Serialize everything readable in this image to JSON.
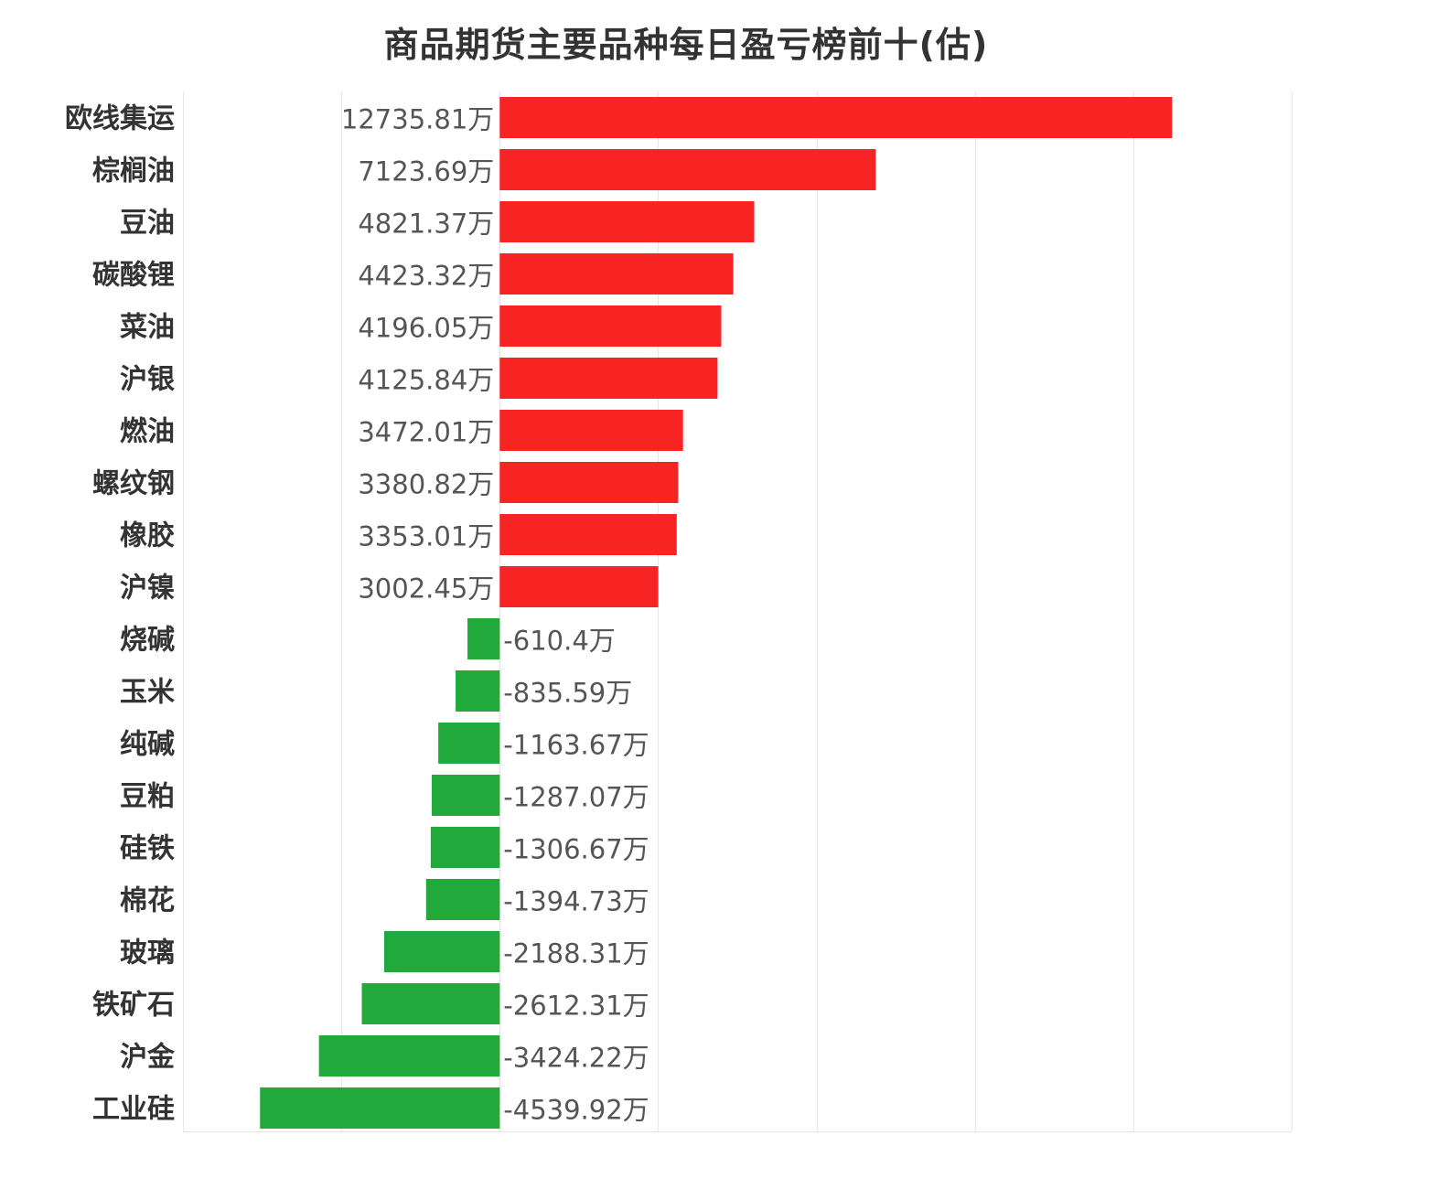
{
  "chart_data": {
    "type": "bar",
    "orientation": "horizontal",
    "title": "商品期货主要品种每日盈亏榜前十(估)",
    "unit": "万",
    "categories": [
      "欧线集运",
      "棕榈油",
      "豆油",
      "碳酸锂",
      "菜油",
      "沪银",
      "燃油",
      "螺纹钢",
      "橡胶",
      "沪镍",
      "烧碱",
      "玉米",
      "纯碱",
      "豆粕",
      "硅铁",
      "棉花",
      "玻璃",
      "铁矿石",
      "沪金",
      "工业硅"
    ],
    "values": [
      12735.81,
      7123.69,
      4821.37,
      4423.32,
      4196.05,
      4125.84,
      3472.01,
      3380.82,
      3353.01,
      3002.45,
      -610.4,
      -835.59,
      -1163.67,
      -1287.07,
      -1306.67,
      -1394.73,
      -2188.31,
      -2612.31,
      -3424.22,
      -4539.92
    ],
    "value_labels": [
      "12735.81万",
      "7123.69万",
      "4821.37万",
      "4423.32万",
      "4196.05万",
      "4125.84万",
      "3472.01万",
      "3380.82万",
      "3353.01万",
      "3002.45万",
      "-610.4万",
      "-835.59万",
      "-1163.67万",
      "-1287.07万",
      "-1306.67万",
      "-1394.73万",
      "-2188.31万",
      "-2612.31万",
      "-3424.22万",
      "-4539.92万"
    ],
    "xlim": [
      -6000,
      15000
    ],
    "grid": true,
    "legend": "none",
    "colors": {
      "positive": "#f82424",
      "negative": "#22a93c",
      "grid": "#e6e6e6"
    }
  }
}
